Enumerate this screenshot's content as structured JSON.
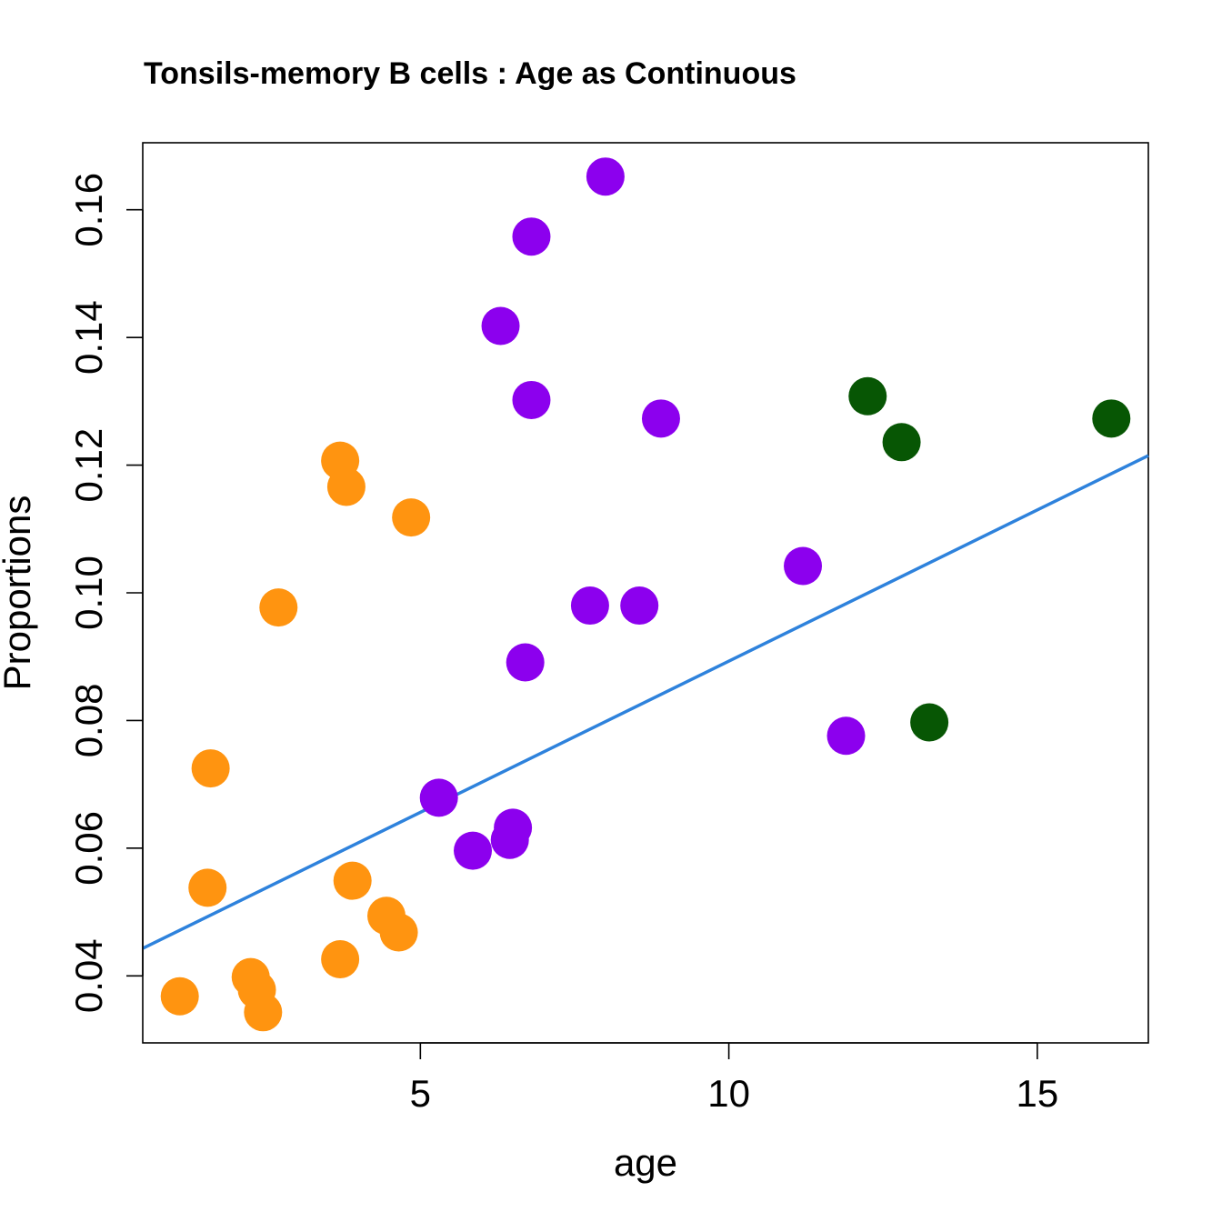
{
  "chart_data": {
    "type": "scatter",
    "title": "Tonsils-memory B cells : Age as Continuous",
    "xlabel": "age",
    "ylabel": "Proportions",
    "xlim": [
      0.5,
      16.8
    ],
    "ylim": [
      0.0295,
      0.1705
    ],
    "xticks": [
      5,
      10,
      15
    ],
    "yticks": [
      0.04,
      0.06,
      0.08,
      0.1,
      0.12,
      0.14,
      0.16
    ],
    "ytick_labels": [
      "0.04",
      "0.06",
      "0.08",
      "0.10",
      "0.12",
      "0.14",
      "0.16"
    ],
    "grid": false,
    "legend": "none",
    "series": [
      {
        "color": "#ff9410",
        "points": [
          [
            1.1,
            0.0368
          ],
          [
            1.6,
            0.0725
          ],
          [
            1.55,
            0.0538
          ],
          [
            2.25,
            0.0398
          ],
          [
            2.35,
            0.0378
          ],
          [
            2.45,
            0.0343
          ],
          [
            2.7,
            0.0977
          ],
          [
            3.7,
            0.1207
          ],
          [
            3.8,
            0.1166
          ],
          [
            3.9,
            0.0549
          ],
          [
            3.7,
            0.0426
          ],
          [
            4.45,
            0.0494
          ],
          [
            4.65,
            0.0468
          ],
          [
            4.85,
            0.1118
          ]
        ]
      },
      {
        "color": "#8c00ee",
        "points": [
          [
            5.3,
            0.0679
          ],
          [
            5.85,
            0.0596
          ],
          [
            6.3,
            0.1418
          ],
          [
            6.45,
            0.0613
          ],
          [
            6.5,
            0.0632
          ],
          [
            6.7,
            0.0891
          ],
          [
            6.8,
            0.1558
          ],
          [
            6.8,
            0.1302
          ],
          [
            7.75,
            0.098
          ],
          [
            8.0,
            0.1652
          ],
          [
            8.55,
            0.098
          ],
          [
            8.9,
            0.1273
          ],
          [
            11.2,
            0.1042
          ],
          [
            11.9,
            0.0776
          ]
        ]
      },
      {
        "color": "#075604",
        "points": [
          [
            12.25,
            0.1308
          ],
          [
            12.8,
            0.1236
          ],
          [
            13.25,
            0.0797
          ],
          [
            16.2,
            0.1273
          ]
        ]
      }
    ],
    "fit_line": {
      "color": "#2e82dc",
      "x": [
        0.5,
        16.8
      ],
      "y": [
        0.0443,
        0.1215
      ]
    }
  }
}
